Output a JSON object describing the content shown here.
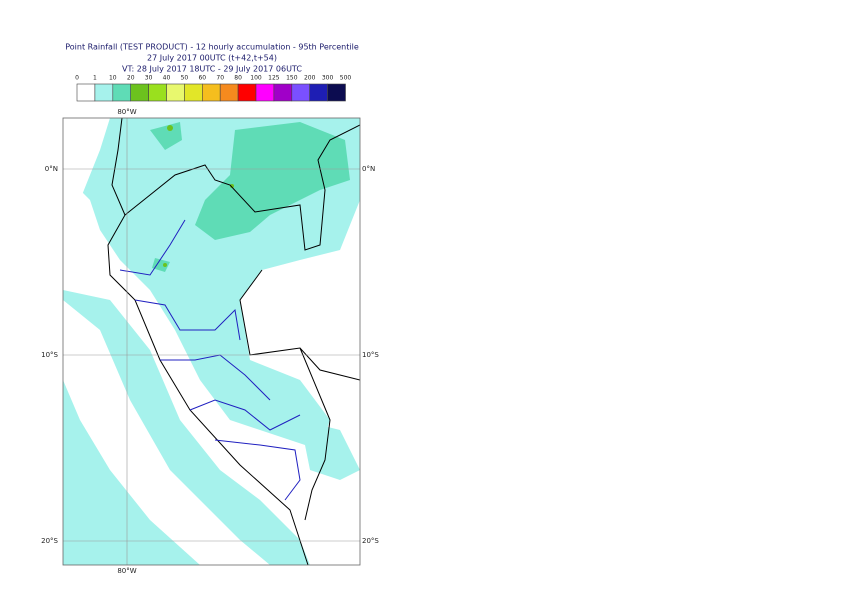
{
  "header": {
    "lines": [
      "Point Rainfall (TEST PRODUCT) - 12 hourly accumulation - 95th Percentile",
      "27 July 2017 00UTC (t+42,t+54)",
      "VT: 28 July 2017 18UTC - 29 July 2017 06UTC"
    ]
  },
  "legend": {
    "ticks": [
      "0",
      "1",
      "10",
      "20",
      "30",
      "40",
      "50",
      "60",
      "70",
      "80",
      "100",
      "125",
      "150",
      "200",
      "300",
      "500"
    ],
    "colors": [
      "#ffffff",
      "#a6f2ec",
      "#5fdcb6",
      "#6cc21e",
      "#9ae01e",
      "#e8f86e",
      "#e2e628",
      "#f5be1e",
      "#f58a1e",
      "#ff0000",
      "#ff00ff",
      "#a000c8",
      "#7a50ff",
      "#1e1eb4",
      "#0c0c50"
    ]
  },
  "map": {
    "lon_label": "80°W",
    "lat_labels": [
      "0°N",
      "10°S",
      "20°S"
    ]
  }
}
